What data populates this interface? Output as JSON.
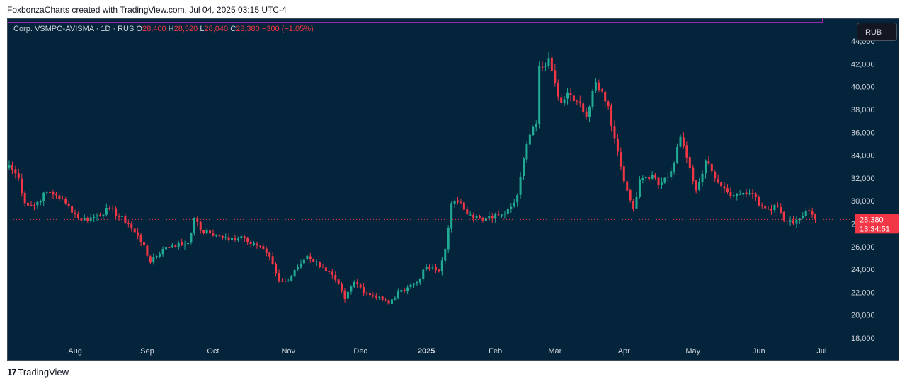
{
  "header": {
    "text": "FoxbonzaCharts created with TradingView.com, Jul 04, 2025 03:15 UTC-4"
  },
  "legend": {
    "symbol": "Corp. VSMPO-AVISMA · 1D · RUS",
    "open_label": "O",
    "open": "28,400",
    "high_label": "H",
    "high": "28,520",
    "low_label": "L",
    "low": "28,040",
    "close_label": "C",
    "close": "28,380",
    "change": "−300 (−1.05%)"
  },
  "currency_button": "RUB",
  "footer": {
    "logo": "17",
    "brand": "TradingView"
  },
  "colors": {
    "up": "#22ab94",
    "down": "#f23645",
    "background": "#03243a",
    "price_tag": "#f23645"
  },
  "chart_data": {
    "type": "candlestick",
    "title": "Corp. VSMPO-AVISMA · 1D · RUS",
    "currency": "RUB",
    "ylim": [
      17000,
      45000
    ],
    "y_ticks": [
      18000,
      20000,
      22000,
      24000,
      26000,
      28000,
      30000,
      32000,
      34000,
      36000,
      38000,
      40000,
      42000,
      44000
    ],
    "y_tick_labels": [
      "18,000",
      "20,000",
      "22,000",
      "24,000",
      "26,000",
      "28,000",
      "30,000",
      "32,000",
      "34,000",
      "36,000",
      "38,000",
      "40,000",
      "42,000",
      "44,000"
    ],
    "x_ticks": [
      {
        "label": "Aug",
        "index": 21,
        "bold": false
      },
      {
        "label": "Sep",
        "index": 44,
        "bold": false
      },
      {
        "label": "Oct",
        "index": 65,
        "bold": false
      },
      {
        "label": "Nov",
        "index": 89,
        "bold": false
      },
      {
        "label": "Dec",
        "index": 112,
        "bold": false
      },
      {
        "label": "2025",
        "index": 133,
        "bold": true
      },
      {
        "label": "Feb",
        "index": 155,
        "bold": false
      },
      {
        "label": "Mar",
        "index": 174,
        "bold": false
      },
      {
        "label": "Apr",
        "index": 196,
        "bold": false
      },
      {
        "label": "May",
        "index": 218,
        "bold": false
      },
      {
        "label": "Jun",
        "index": 239,
        "bold": false
      },
      {
        "label": "Jul",
        "index": 259,
        "bold": false
      }
    ],
    "last_price": 28380,
    "last_price_label": "28,380",
    "countdown": "13:34:51",
    "anchors": [
      [
        0,
        33100
      ],
      [
        3,
        32000
      ],
      [
        5,
        29800
      ],
      [
        8,
        29600
      ],
      [
        12,
        30800
      ],
      [
        15,
        30500
      ],
      [
        18,
        29800
      ],
      [
        23,
        28300
      ],
      [
        27,
        28600
      ],
      [
        32,
        29300
      ],
      [
        38,
        28000
      ],
      [
        43,
        26100
      ],
      [
        45,
        24600
      ],
      [
        49,
        25800
      ],
      [
        52,
        26100
      ],
      [
        57,
        26300
      ],
      [
        59,
        28500
      ],
      [
        61,
        27400
      ],
      [
        66,
        27000
      ],
      [
        70,
        26600
      ],
      [
        74,
        26900
      ],
      [
        78,
        26300
      ],
      [
        81,
        25800
      ],
      [
        84,
        24500
      ],
      [
        86,
        23000
      ],
      [
        89,
        23000
      ],
      [
        92,
        24200
      ],
      [
        95,
        25200
      ],
      [
        100,
        24200
      ],
      [
        104,
        23100
      ],
      [
        107,
        21400
      ],
      [
        110,
        22900
      ],
      [
        114,
        21900
      ],
      [
        118,
        21600
      ],
      [
        121,
        21000
      ],
      [
        125,
        22200
      ],
      [
        130,
        22900
      ],
      [
        133,
        24200
      ],
      [
        137,
        23800
      ],
      [
        139,
        25800
      ],
      [
        141,
        29800
      ],
      [
        143,
        29900
      ],
      [
        147,
        28800
      ],
      [
        151,
        28300
      ],
      [
        156,
        28800
      ],
      [
        159,
        29300
      ],
      [
        162,
        30500
      ],
      [
        164,
        33700
      ],
      [
        166,
        35800
      ],
      [
        168,
        36700
      ],
      [
        169,
        41800
      ],
      [
        170,
        41700
      ],
      [
        172,
        42500
      ],
      [
        174,
        40300
      ],
      [
        176,
        38600
      ],
      [
        178,
        39500
      ],
      [
        182,
        38600
      ],
      [
        184,
        37400
      ],
      [
        187,
        40400
      ],
      [
        189,
        39600
      ],
      [
        191,
        38300
      ],
      [
        193,
        35500
      ],
      [
        195,
        33000
      ],
      [
        197,
        30900
      ],
      [
        199,
        29300
      ],
      [
        201,
        31900
      ],
      [
        205,
        32300
      ],
      [
        207,
        31400
      ],
      [
        210,
        32100
      ],
      [
        212,
        33300
      ],
      [
        214,
        35600
      ],
      [
        216,
        33800
      ],
      [
        219,
        30900
      ],
      [
        222,
        33500
      ],
      [
        224,
        32600
      ],
      [
        228,
        31100
      ],
      [
        231,
        30500
      ],
      [
        234,
        30700
      ],
      [
        237,
        30600
      ],
      [
        239,
        29600
      ],
      [
        242,
        29300
      ],
      [
        245,
        29500
      ],
      [
        247,
        28300
      ],
      [
        250,
        28000
      ],
      [
        253,
        28700
      ],
      [
        255,
        29100
      ],
      [
        256,
        28800
      ],
      [
        257,
        28380
      ]
    ]
  }
}
